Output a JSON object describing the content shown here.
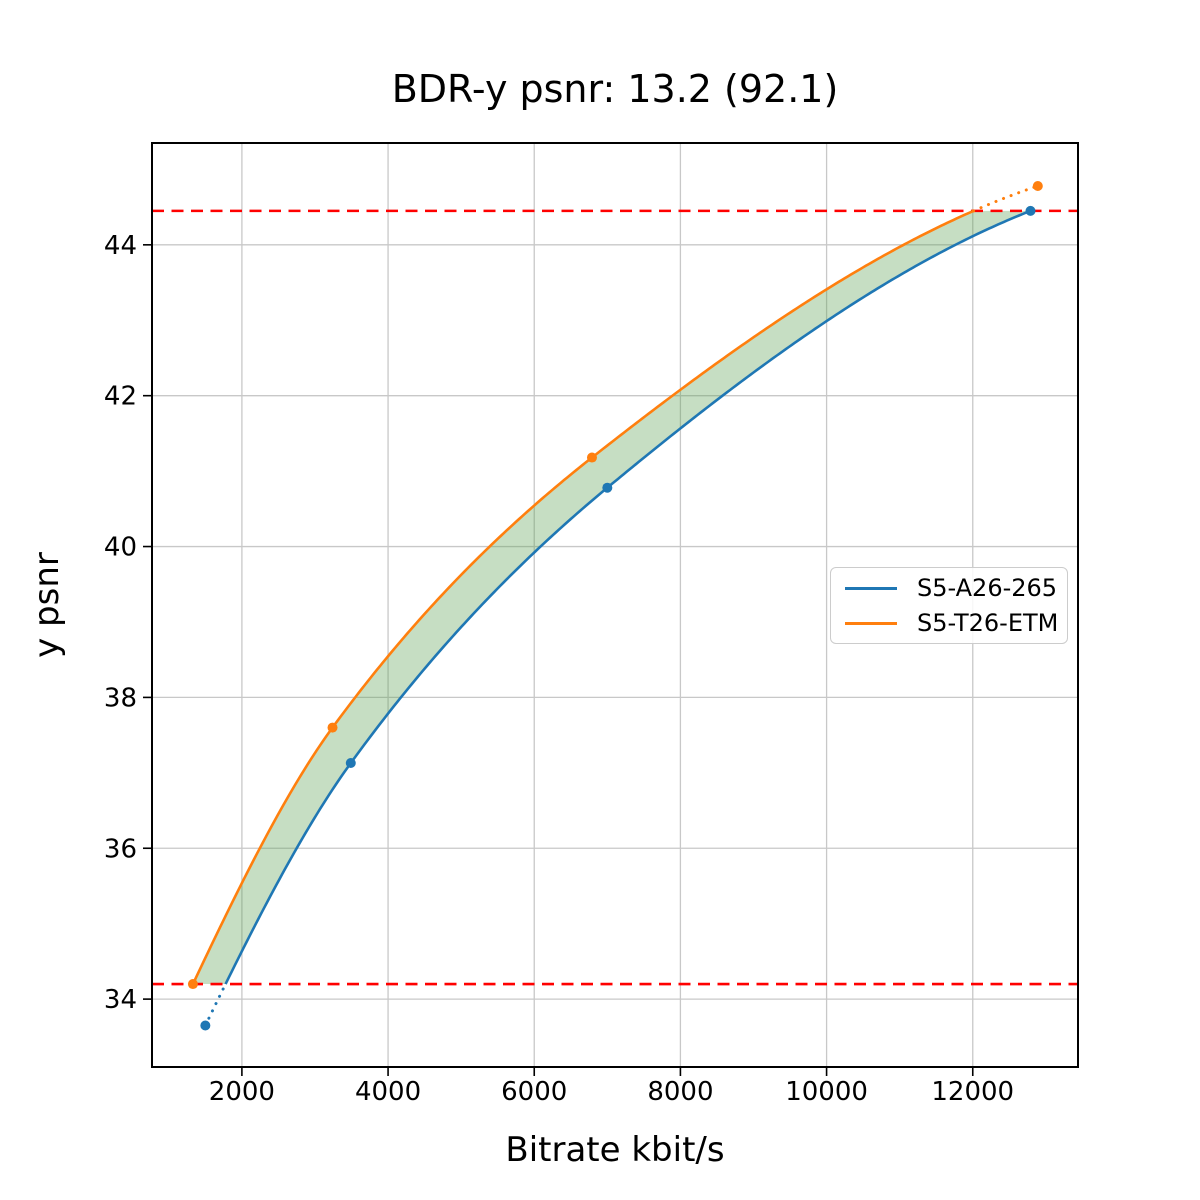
{
  "chart_data": {
    "type": "line",
    "title": "BDR-y psnr: 13.2 (92.1)",
    "xlabel": "Bitrate kbit/s",
    "ylabel": "y psnr",
    "xlim": [
      770,
      13440
    ],
    "ylim": [
      33.1,
      45.35
    ],
    "x_ticks": [
      2000,
      4000,
      6000,
      8000,
      10000,
      12000
    ],
    "y_ticks": [
      34,
      36,
      38,
      40,
      42,
      44
    ],
    "grid": true,
    "grid_color": "#c8c8c8",
    "legend_position": "center right",
    "series": [
      {
        "name": "S5-A26-265",
        "color": "#1f77b4",
        "x": [
          1500,
          3490,
          7000,
          12790
        ],
        "y": [
          33.65,
          37.13,
          40.78,
          44.45
        ]
      },
      {
        "name": "S5-T26-ETM",
        "color": "#ff7f0e",
        "x": [
          1330,
          3240,
          6790,
          12890
        ],
        "y": [
          34.2,
          37.6,
          41.18,
          44.78
        ]
      }
    ],
    "overlap_region": {
      "low": 34.2,
      "high": 44.45,
      "line_color": "#ff0000",
      "line_style": "dashed",
      "fill_color": "#5ba052",
      "fill_alpha": 0.35
    }
  }
}
